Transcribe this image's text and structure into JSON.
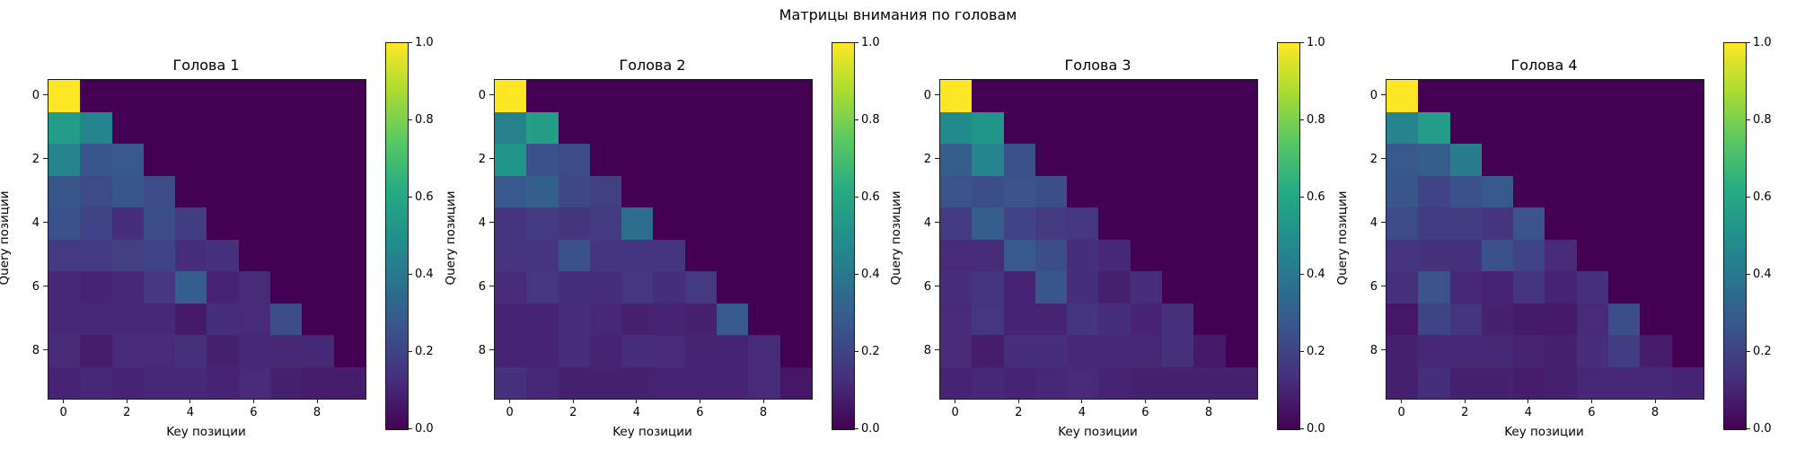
{
  "figure": {
    "suptitle": "Матрицы внимания по головам",
    "background": "#ffffff",
    "text_color": "#000000",
    "colormap": "viridis",
    "axis": {
      "xlabel": "Key позиции",
      "ylabel": "Query позиции",
      "x_ticks": [
        {
          "pos": 0,
          "label": "0"
        },
        {
          "pos": 2,
          "label": "2"
        },
        {
          "pos": 4,
          "label": "4"
        },
        {
          "pos": 6,
          "label": "6"
        },
        {
          "pos": 8,
          "label": "8"
        }
      ],
      "y_ticks": [
        {
          "pos": 0,
          "label": "0"
        },
        {
          "pos": 2,
          "label": "2"
        },
        {
          "pos": 4,
          "label": "4"
        },
        {
          "pos": 6,
          "label": "6"
        },
        {
          "pos": 8,
          "label": "8"
        }
      ]
    },
    "colorbar": {
      "vmin": 0.0,
      "vmax": 1.0,
      "ticks": [
        {
          "value": 1.0,
          "label": "1.0"
        },
        {
          "value": 0.8,
          "label": "0.8"
        },
        {
          "value": 0.6,
          "label": "0.6"
        },
        {
          "value": 0.4,
          "label": "0.4"
        },
        {
          "value": 0.2,
          "label": "0.2"
        },
        {
          "value": 0.0,
          "label": "0.0"
        }
      ]
    }
  },
  "chart_data": [
    {
      "type": "heatmap",
      "title": "Голова 1",
      "xlabel": "Key позиции",
      "ylabel": "Query позиции",
      "x": [
        0,
        1,
        2,
        3,
        4,
        5,
        6,
        7,
        8,
        9
      ],
      "y": [
        0,
        1,
        2,
        3,
        4,
        5,
        6,
        7,
        8,
        9
      ],
      "vmin": 0.0,
      "vmax": 1.0,
      "matrix": [
        [
          1.0,
          0,
          0,
          0,
          0,
          0,
          0,
          0,
          0,
          0
        ],
        [
          0.55,
          0.45,
          0,
          0,
          0,
          0,
          0,
          0,
          0,
          0
        ],
        [
          0.45,
          0.27,
          0.28,
          0,
          0,
          0,
          0,
          0,
          0,
          0
        ],
        [
          0.27,
          0.23,
          0.27,
          0.23,
          0,
          0,
          0,
          0,
          0,
          0
        ],
        [
          0.25,
          0.2,
          0.13,
          0.24,
          0.18,
          0,
          0,
          0,
          0,
          0
        ],
        [
          0.17,
          0.17,
          0.19,
          0.2,
          0.13,
          0.14,
          0,
          0,
          0,
          0
        ],
        [
          0.11,
          0.1,
          0.11,
          0.16,
          0.3,
          0.1,
          0.12,
          0,
          0,
          0
        ],
        [
          0.11,
          0.11,
          0.11,
          0.11,
          0.07,
          0.13,
          0.12,
          0.24,
          0,
          0
        ],
        [
          0.12,
          0.08,
          0.12,
          0.12,
          0.14,
          0.09,
          0.11,
          0.11,
          0.11,
          0
        ],
        [
          0.1,
          0.11,
          0.1,
          0.11,
          0.11,
          0.1,
          0.12,
          0.09,
          0.08,
          0.08
        ]
      ]
    },
    {
      "type": "heatmap",
      "title": "Голова 2",
      "xlabel": "Key позиции",
      "ylabel": "Query позиции",
      "x": [
        0,
        1,
        2,
        3,
        4,
        5,
        6,
        7,
        8,
        9
      ],
      "y": [
        0,
        1,
        2,
        3,
        4,
        5,
        6,
        7,
        8,
        9
      ],
      "vmin": 0.0,
      "vmax": 1.0,
      "matrix": [
        [
          1.0,
          0,
          0,
          0,
          0,
          0,
          0,
          0,
          0,
          0
        ],
        [
          0.44,
          0.56,
          0,
          0,
          0,
          0,
          0,
          0,
          0,
          0
        ],
        [
          0.52,
          0.25,
          0.23,
          0,
          0,
          0,
          0,
          0,
          0,
          0
        ],
        [
          0.28,
          0.31,
          0.22,
          0.19,
          0,
          0,
          0,
          0,
          0,
          0
        ],
        [
          0.15,
          0.17,
          0.15,
          0.17,
          0.36,
          0,
          0,
          0,
          0,
          0
        ],
        [
          0.15,
          0.15,
          0.25,
          0.15,
          0.15,
          0.15,
          0,
          0,
          0,
          0
        ],
        [
          0.12,
          0.16,
          0.13,
          0.13,
          0.16,
          0.13,
          0.17,
          0,
          0,
          0
        ],
        [
          0.1,
          0.1,
          0.13,
          0.11,
          0.09,
          0.1,
          0.09,
          0.28,
          0,
          0
        ],
        [
          0.1,
          0.1,
          0.13,
          0.1,
          0.13,
          0.12,
          0.1,
          0.1,
          0.12,
          0
        ],
        [
          0.14,
          0.11,
          0.09,
          0.09,
          0.09,
          0.1,
          0.1,
          0.1,
          0.12,
          0.06
        ]
      ]
    },
    {
      "type": "heatmap",
      "title": "Голова 3",
      "xlabel": "Key позиции",
      "ylabel": "Query позиции",
      "x": [
        0,
        1,
        2,
        3,
        4,
        5,
        6,
        7,
        8,
        9
      ],
      "y": [
        0,
        1,
        2,
        3,
        4,
        5,
        6,
        7,
        8,
        9
      ],
      "vmin": 0.0,
      "vmax": 1.0,
      "matrix": [
        [
          1.0,
          0,
          0,
          0,
          0,
          0,
          0,
          0,
          0,
          0
        ],
        [
          0.48,
          0.52,
          0,
          0,
          0,
          0,
          0,
          0,
          0,
          0
        ],
        [
          0.3,
          0.45,
          0.25,
          0,
          0,
          0,
          0,
          0,
          0,
          0
        ],
        [
          0.26,
          0.24,
          0.26,
          0.24,
          0,
          0,
          0,
          0,
          0,
          0
        ],
        [
          0.17,
          0.3,
          0.2,
          0.17,
          0.16,
          0,
          0,
          0,
          0,
          0
        ],
        [
          0.12,
          0.12,
          0.28,
          0.24,
          0.13,
          0.11,
          0,
          0,
          0,
          0
        ],
        [
          0.13,
          0.15,
          0.1,
          0.27,
          0.13,
          0.09,
          0.13,
          0,
          0,
          0
        ],
        [
          0.12,
          0.16,
          0.1,
          0.1,
          0.15,
          0.13,
          0.1,
          0.14,
          0,
          0
        ],
        [
          0.12,
          0.08,
          0.13,
          0.13,
          0.11,
          0.11,
          0.11,
          0.14,
          0.07,
          0
        ],
        [
          0.1,
          0.11,
          0.1,
          0.11,
          0.12,
          0.1,
          0.09,
          0.09,
          0.09,
          0.09
        ]
      ]
    },
    {
      "type": "heatmap",
      "title": "Голова 4",
      "xlabel": "Key позиции",
      "ylabel": "Query позиции",
      "x": [
        0,
        1,
        2,
        3,
        4,
        5,
        6,
        7,
        8,
        9
      ],
      "y": [
        0,
        1,
        2,
        3,
        4,
        5,
        6,
        7,
        8,
        9
      ],
      "vmin": 0.0,
      "vmax": 1.0,
      "matrix": [
        [
          1.0,
          0,
          0,
          0,
          0,
          0,
          0,
          0,
          0,
          0
        ],
        [
          0.45,
          0.55,
          0,
          0,
          0,
          0,
          0,
          0,
          0,
          0
        ],
        [
          0.28,
          0.3,
          0.42,
          0,
          0,
          0,
          0,
          0,
          0,
          0
        ],
        [
          0.27,
          0.2,
          0.25,
          0.28,
          0,
          0,
          0,
          0,
          0,
          0
        ],
        [
          0.23,
          0.18,
          0.18,
          0.15,
          0.26,
          0,
          0,
          0,
          0,
          0
        ],
        [
          0.15,
          0.14,
          0.14,
          0.25,
          0.2,
          0.12,
          0,
          0,
          0,
          0
        ],
        [
          0.14,
          0.26,
          0.11,
          0.1,
          0.15,
          0.1,
          0.14,
          0,
          0,
          0
        ],
        [
          0.06,
          0.2,
          0.15,
          0.09,
          0.07,
          0.07,
          0.12,
          0.24,
          0,
          0
        ],
        [
          0.09,
          0.11,
          0.11,
          0.11,
          0.1,
          0.09,
          0.13,
          0.18,
          0.08,
          0
        ],
        [
          0.09,
          0.13,
          0.09,
          0.09,
          0.08,
          0.09,
          0.11,
          0.11,
          0.11,
          0.1
        ]
      ]
    }
  ]
}
